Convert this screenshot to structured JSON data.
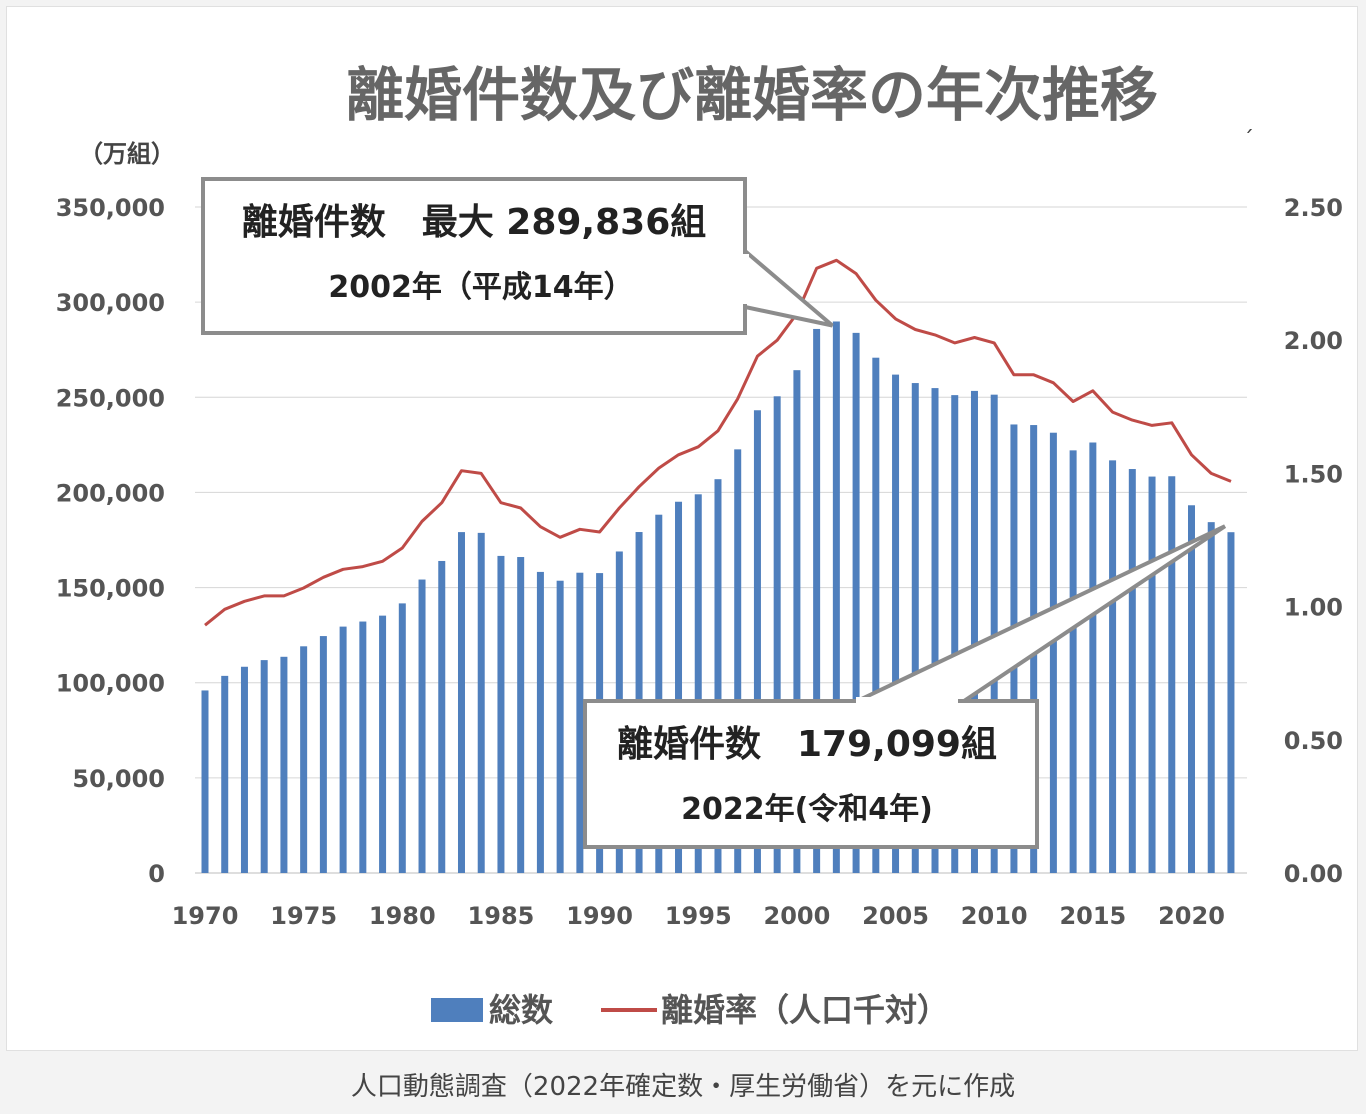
{
  "caption": "人口動態調査（2022年確定数・厚生労働省）を元に作成",
  "chart_data": {
    "type": "bar+line",
    "title": "離婚件数及び離婚率の年次推移",
    "y_left_unit": "（万組）",
    "y_left_range": [
      0,
      350000
    ],
    "y_left_ticks": [
      "0",
      "50,000",
      "100,000",
      "150,000",
      "200,000",
      "250,000",
      "300,000",
      "350,000"
    ],
    "y_right_range": [
      0,
      2.5
    ],
    "y_right_ticks": [
      "0.00",
      "0.50",
      "1.00",
      "1.50",
      "2.00",
      "2.50"
    ],
    "x_ticks": [
      "1970",
      "1975",
      "1980",
      "1985",
      "1990",
      "1995",
      "2000",
      "2005",
      "2010",
      "2015",
      "2020"
    ],
    "grid": true,
    "legend_position": "bottom",
    "colors": {
      "bar": "#4f7fbd",
      "line": "#bf4b47",
      "grid": "#d6d6d6",
      "callout_border": "#8c8c8c"
    },
    "years": [
      1970,
      1971,
      1972,
      1973,
      1974,
      1975,
      1976,
      1977,
      1978,
      1979,
      1980,
      1981,
      1982,
      1983,
      1984,
      1985,
      1986,
      1987,
      1988,
      1989,
      1990,
      1991,
      1992,
      1993,
      1994,
      1995,
      1996,
      1997,
      1998,
      1999,
      2000,
      2001,
      2002,
      2003,
      2004,
      2005,
      2006,
      2007,
      2008,
      2009,
      2010,
      2011,
      2012,
      2013,
      2014,
      2015,
      2016,
      2017,
      2018,
      2019,
      2020,
      2021,
      2022
    ],
    "series": [
      {
        "name": "総数",
        "type": "bar",
        "axis": "left",
        "values": [
          95937,
          103595,
          108382,
          111877,
          113622,
          119135,
          124512,
          129485,
          132146,
          135250,
          141689,
          154221,
          163980,
          179150,
          178746,
          166640,
          166054,
          158227,
          153600,
          157811,
          157608,
          168969,
          179191,
          188297,
          195106,
          199016,
          206955,
          222635,
          243183,
          250529,
          264246,
          285911,
          289836,
          283854,
          270804,
          261917,
          257475,
          254832,
          251136,
          253353,
          251378,
          235720,
          235406,
          231383,
          222107,
          226238,
          216856,
          212296,
          208333,
          208496,
          193253,
          184384,
          179099
        ]
      },
      {
        "name": "離婚率(人口千対)",
        "type": "line",
        "axis": "right",
        "values": [
          0.93,
          0.99,
          1.02,
          1.04,
          1.04,
          1.07,
          1.11,
          1.14,
          1.15,
          1.17,
          1.22,
          1.32,
          1.39,
          1.51,
          1.5,
          1.39,
          1.37,
          1.3,
          1.26,
          1.29,
          1.28,
          1.37,
          1.45,
          1.52,
          1.57,
          1.6,
          1.66,
          1.78,
          1.94,
          2.0,
          2.1,
          2.27,
          2.3,
          2.25,
          2.15,
          2.08,
          2.04,
          2.02,
          1.99,
          2.01,
          1.99,
          1.87,
          1.87,
          1.84,
          1.77,
          1.81,
          1.73,
          1.7,
          1.68,
          1.69,
          1.57,
          1.5,
          1.47
        ]
      }
    ],
    "callouts": [
      {
        "line1": "離婚件数　最大 289,836組",
        "line2": "2002年（平成14年）"
      },
      {
        "line1": "離婚件数　179,099組",
        "line2": "2022年(令和4年)"
      }
    ],
    "legend": [
      {
        "label": "総数"
      },
      {
        "label": "離婚率（人口千対）"
      }
    ],
    "stray_mark": "ˊ"
  }
}
